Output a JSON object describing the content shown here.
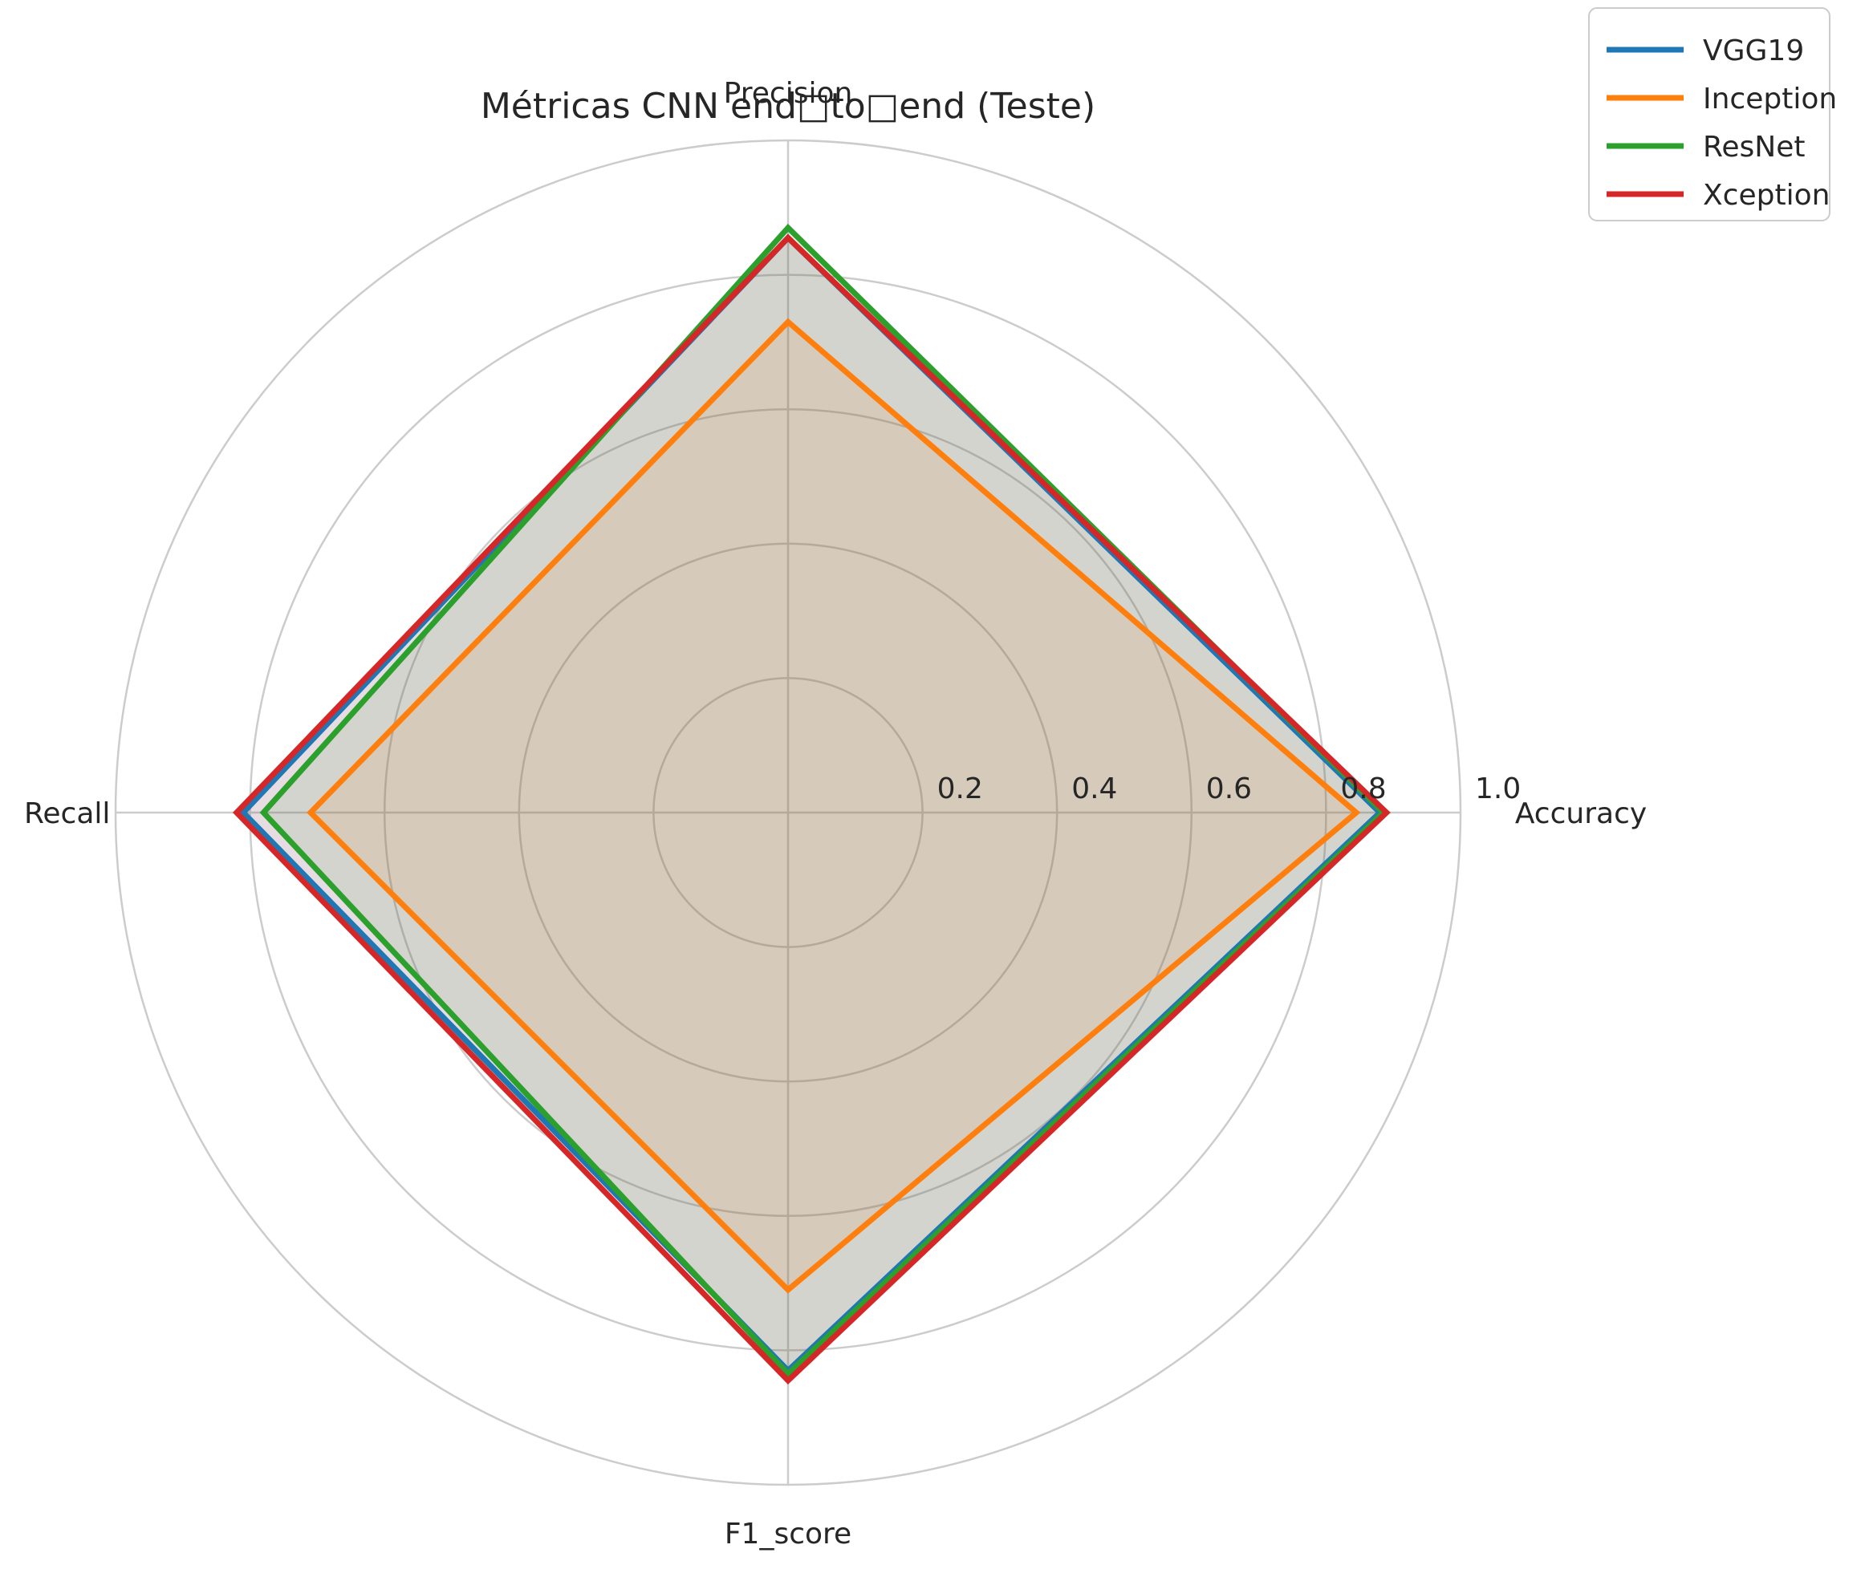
{
  "chart_data": {
    "type": "radar",
    "title": "Métricas CNN end□to□end (Teste)",
    "axes": [
      "Accuracy",
      "Precision",
      "Recall",
      "F1_score"
    ],
    "rlim": [
      0,
      1.0
    ],
    "rticks": [
      0.2,
      0.4,
      0.6,
      0.8,
      1.0
    ],
    "rtick_labels": [
      "0.2",
      "0.4",
      "0.6",
      "0.8",
      "1.0"
    ],
    "grid": true,
    "legend_position": "top-right (outside)",
    "series": [
      {
        "name": "VGG19",
        "color": "#1f77b4",
        "values": [
          0.88,
          0.855,
          0.81,
          0.83
        ]
      },
      {
        "name": "Inception",
        "color": "#ff7f0e",
        "values": [
          0.845,
          0.73,
          0.71,
          0.71
        ]
      },
      {
        "name": "ResNet",
        "color": "#2ca02c",
        "values": [
          0.885,
          0.87,
          0.78,
          0.835
        ]
      },
      {
        "name": "Xception",
        "color": "#d62728",
        "values": [
          0.89,
          0.855,
          0.82,
          0.845
        ]
      }
    ]
  }
}
